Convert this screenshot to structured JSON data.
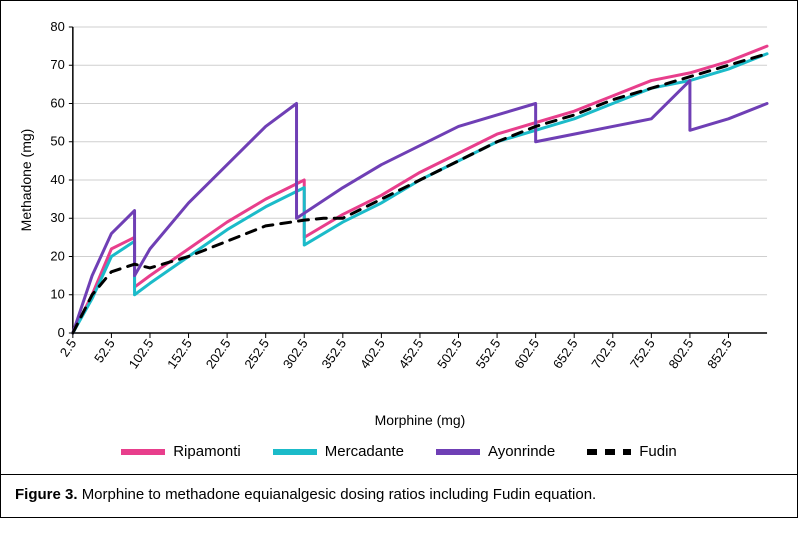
{
  "chart": {
    "type": "line",
    "background_color": "#ffffff",
    "plot_background": "#ffffff",
    "gridline_color": "#cfcfcf",
    "axis_color": "#000000",
    "xlabel": "Morphine (mg)",
    "ylabel": "Methadone (mg)",
    "label_fontsize": 14,
    "tick_fontsize": 13,
    "x_categories": [
      "2.5",
      "52.5",
      "102.5",
      "152.5",
      "202.5",
      "252.5",
      "302.5",
      "352.5",
      "402.5",
      "452.5",
      "502.5",
      "552.5",
      "602.5",
      "652.5",
      "702.5",
      "752.5",
      "802.5",
      "852.5"
    ],
    "x_index_max": 18,
    "ylim": [
      0,
      80
    ],
    "ytick_step": 10,
    "line_width": 3,
    "dash_pattern": "10 8",
    "series": {
      "ripamonti": {
        "label": "Ripamonti",
        "color": "#e83e8c",
        "points": [
          [
            0,
            0
          ],
          [
            0.5,
            10
          ],
          [
            1,
            22
          ],
          [
            1.6,
            25
          ],
          [
            1.6,
            12
          ],
          [
            2,
            15
          ],
          [
            3,
            22
          ],
          [
            4,
            29
          ],
          [
            5,
            35
          ],
          [
            6,
            40
          ],
          [
            6,
            25
          ],
          [
            7,
            31
          ],
          [
            8,
            36
          ],
          [
            9,
            42
          ],
          [
            10,
            47
          ],
          [
            11,
            52
          ],
          [
            12,
            55
          ],
          [
            13,
            58
          ],
          [
            14,
            62
          ],
          [
            15,
            66
          ],
          [
            16,
            68
          ],
          [
            17,
            71
          ],
          [
            18,
            75
          ]
        ]
      },
      "mercadante": {
        "label": "Mercadante",
        "color": "#1bbbc9",
        "points": [
          [
            0,
            0
          ],
          [
            0.5,
            9
          ],
          [
            1,
            20
          ],
          [
            1.6,
            24
          ],
          [
            1.6,
            10
          ],
          [
            2,
            13
          ],
          [
            3,
            20
          ],
          [
            4,
            27
          ],
          [
            5,
            33
          ],
          [
            6,
            38
          ],
          [
            6,
            23
          ],
          [
            7,
            29
          ],
          [
            8,
            34
          ],
          [
            9,
            40
          ],
          [
            10,
            45
          ],
          [
            11,
            50
          ],
          [
            12,
            53
          ],
          [
            13,
            56
          ],
          [
            14,
            60
          ],
          [
            15,
            64
          ],
          [
            16,
            66
          ],
          [
            17,
            69
          ],
          [
            18,
            73
          ]
        ]
      },
      "ayonrinde": {
        "label": "Ayonrinde",
        "color": "#6f3fb5",
        "points": [
          [
            0,
            0
          ],
          [
            0.5,
            15
          ],
          [
            1,
            26
          ],
          [
            1.6,
            32
          ],
          [
            1.6,
            15
          ],
          [
            2,
            22
          ],
          [
            3,
            34
          ],
          [
            4,
            44
          ],
          [
            5,
            54
          ],
          [
            5.8,
            60
          ],
          [
            5.8,
            30
          ],
          [
            7,
            38
          ],
          [
            8,
            44
          ],
          [
            9,
            49
          ],
          [
            10,
            54
          ],
          [
            11,
            57
          ],
          [
            12,
            60
          ],
          [
            12,
            50
          ],
          [
            13,
            52
          ],
          [
            14,
            54
          ],
          [
            15,
            56
          ],
          [
            16,
            66
          ],
          [
            16,
            53
          ],
          [
            17,
            56
          ],
          [
            18,
            60
          ]
        ]
      },
      "fudin": {
        "label": "Fudin",
        "color": "#000000",
        "dashed": true,
        "points": [
          [
            0,
            0
          ],
          [
            0.5,
            10
          ],
          [
            1,
            16
          ],
          [
            1.6,
            18
          ],
          [
            2,
            17
          ],
          [
            3,
            20
          ],
          [
            4,
            24
          ],
          [
            5,
            28
          ],
          [
            6,
            29.5
          ],
          [
            6.5,
            30
          ],
          [
            7,
            30
          ],
          [
            8,
            35
          ],
          [
            9,
            40
          ],
          [
            10,
            45
          ],
          [
            11,
            50
          ],
          [
            12,
            54
          ],
          [
            13,
            57
          ],
          [
            14,
            61
          ],
          [
            15,
            64
          ],
          [
            16,
            67
          ],
          [
            17,
            70
          ],
          [
            18,
            73
          ]
        ]
      }
    },
    "legend_order": [
      "ripamonti",
      "mercadante",
      "ayonrinde",
      "fudin"
    ]
  },
  "caption": {
    "label": "Figure 3.",
    "text": "Morphine to methadone equianalgesic dosing ratios including Fudin equation."
  }
}
